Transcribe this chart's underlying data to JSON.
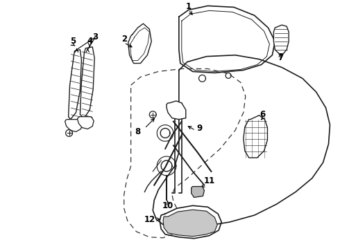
{
  "background_color": "#ffffff",
  "line_color": "#1a1a1a",
  "dashed_color": "#333333",
  "label_color": "#000000",
  "fig_width": 4.9,
  "fig_height": 3.6,
  "dpi": 100
}
